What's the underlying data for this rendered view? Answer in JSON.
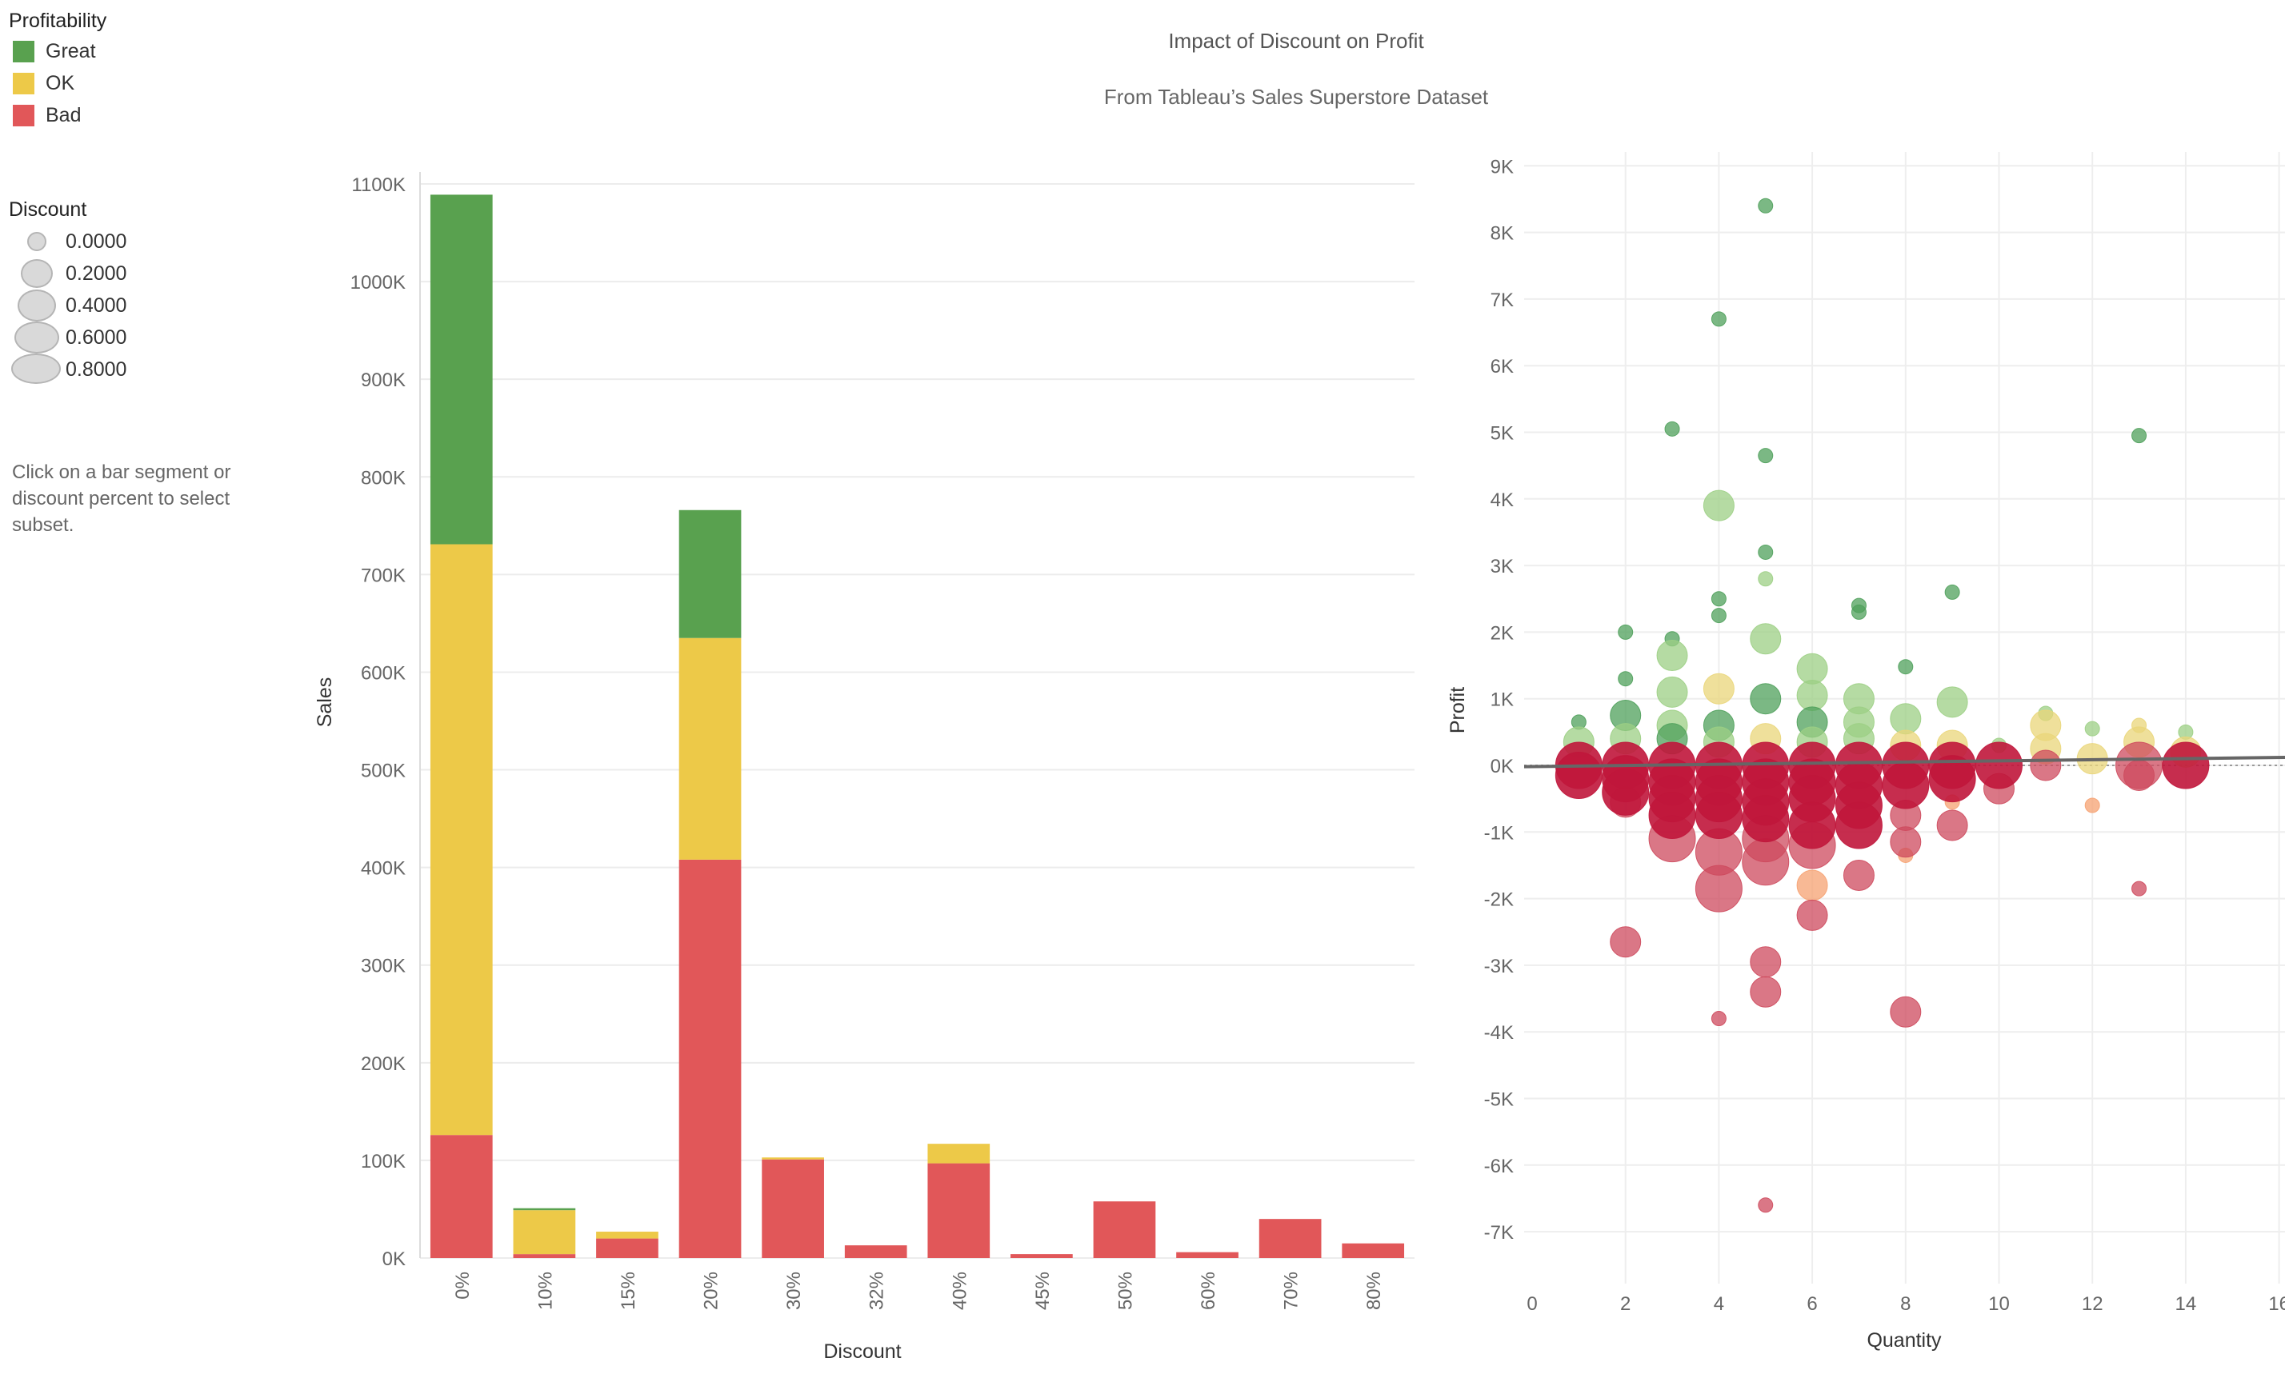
{
  "header": {
    "title": "Impact of Discount on Profit",
    "subtitle": "From Tableau’s Sales Superstore Dataset"
  },
  "legend": {
    "profitability": {
      "title": "Profitability",
      "items": [
        {
          "label": "Great",
          "color": "#59a14f"
        },
        {
          "label": "OK",
          "color": "#edc948"
        },
        {
          "label": "Bad",
          "color": "#e15759"
        }
      ]
    },
    "discount": {
      "title": "Discount",
      "items": [
        {
          "label": "0.0000",
          "discount": 0.0
        },
        {
          "label": "0.2000",
          "discount": 0.2
        },
        {
          "label": "0.4000",
          "discount": 0.4
        },
        {
          "label": "0.6000",
          "discount": 0.6
        },
        {
          "label": "0.8000",
          "discount": 0.8
        }
      ]
    }
  },
  "hint_lines": [
    "Click on a bar segment or",
    "discount percent to select",
    "subset."
  ],
  "chart_data": [
    {
      "type": "bar",
      "stacked": true,
      "xlabel": "Discount",
      "ylabel": "Sales",
      "categories": [
        "0%",
        "10%",
        "15%",
        "20%",
        "30%",
        "32%",
        "40%",
        "45%",
        "50%",
        "60%",
        "70%",
        "80%"
      ],
      "series": [
        {
          "name": "Bad",
          "color": "#e15759",
          "values": [
            126000,
            4000,
            20000,
            408000,
            101000,
            13000,
            97000,
            4000,
            58000,
            6000,
            40000,
            15000
          ]
        },
        {
          "name": "OK",
          "color": "#edc948",
          "values": [
            605000,
            45000,
            7000,
            227000,
            2000,
            0,
            20000,
            0,
            0,
            0,
            0,
            0
          ]
        },
        {
          "name": "Great",
          "color": "#59a14f",
          "values": [
            358000,
            2000,
            0,
            131000,
            0,
            0,
            0,
            0,
            0,
            0,
            0,
            0
          ]
        }
      ],
      "ylim": [
        0,
        1100000
      ],
      "yticks": [
        "0K",
        "100K",
        "200K",
        "300K",
        "400K",
        "500K",
        "600K",
        "700K",
        "800K",
        "900K",
        "1000K",
        "1100K"
      ],
      "grid": true
    },
    {
      "type": "scatter",
      "xlabel": "Quantity",
      "ylabel": "Profit",
      "xlim": [
        0,
        16
      ],
      "ylim": [
        -7500,
        9300
      ],
      "xticks": [
        "0",
        "2",
        "4",
        "6",
        "8",
        "10",
        "12",
        "14",
        "16"
      ],
      "yticks": [
        "-7K",
        "-6K",
        "-5K",
        "-4K",
        "-3K",
        "-2K",
        "-1K",
        "0K",
        "1K",
        "2K",
        "3K",
        "4K",
        "5K",
        "6K",
        "7K",
        "8K",
        "9K"
      ],
      "trend_line": {
        "x": [
          0,
          16
        ],
        "y": [
          -20,
          120
        ]
      },
      "colors": {
        "great_dark": "#4fa05b",
        "great_light": "#9ccf84",
        "ok": "#ead67a",
        "orange": "#f6a272",
        "bad": "#ce4a5d",
        "bad_dark": "#c0163b"
      },
      "points": [
        {
          "x": 5,
          "y": 8400,
          "discount": 0.0,
          "color": "great_dark"
        },
        {
          "x": 4,
          "y": 6700,
          "discount": 0.0,
          "color": "great_dark"
        },
        {
          "x": 3,
          "y": 5050,
          "discount": 0.0,
          "color": "great_dark"
        },
        {
          "x": 5,
          "y": 4650,
          "discount": 0.0,
          "color": "great_dark"
        },
        {
          "x": 13,
          "y": 4950,
          "discount": 0.0,
          "color": "great_dark"
        },
        {
          "x": 4,
          "y": 3900,
          "discount": 0.2,
          "color": "great_light"
        },
        {
          "x": 5,
          "y": 3200,
          "discount": 0.0,
          "color": "great_dark"
        },
        {
          "x": 5,
          "y": 2800,
          "discount": 0.0,
          "color": "great_light"
        },
        {
          "x": 4,
          "y": 2500,
          "discount": 0.0,
          "color": "great_dark"
        },
        {
          "x": 4,
          "y": 2250,
          "discount": 0.0,
          "color": "great_dark"
        },
        {
          "x": 7,
          "y": 2400,
          "discount": 0.0,
          "color": "great_dark"
        },
        {
          "x": 7,
          "y": 2300,
          "discount": 0.0,
          "color": "great_dark"
        },
        {
          "x": 9,
          "y": 2600,
          "discount": 0.0,
          "color": "great_dark"
        },
        {
          "x": 2,
          "y": 2000,
          "discount": 0.0,
          "color": "great_dark"
        },
        {
          "x": 3,
          "y": 1900,
          "discount": 0.0,
          "color": "great_dark"
        },
        {
          "x": 5,
          "y": 1900,
          "discount": 0.2,
          "color": "great_light"
        },
        {
          "x": 3,
          "y": 1650,
          "discount": 0.2,
          "color": "great_light"
        },
        {
          "x": 6,
          "y": 1450,
          "discount": 0.2,
          "color": "great_light"
        },
        {
          "x": 8,
          "y": 1480,
          "discount": 0.0,
          "color": "great_dark"
        },
        {
          "x": 4,
          "y": 1150,
          "discount": 0.2,
          "color": "ok"
        },
        {
          "x": 3,
          "y": 1100,
          "discount": 0.2,
          "color": "great_light"
        },
        {
          "x": 5,
          "y": 1000,
          "discount": 0.2,
          "color": "great_dark"
        },
        {
          "x": 6,
          "y": 1050,
          "discount": 0.2,
          "color": "great_light"
        },
        {
          "x": 7,
          "y": 1000,
          "discount": 0.2,
          "color": "great_light"
        },
        {
          "x": 9,
          "y": 950,
          "discount": 0.2,
          "color": "great_light"
        },
        {
          "x": 2,
          "y": 1300,
          "discount": 0.0,
          "color": "great_dark"
        },
        {
          "x": 2,
          "y": 750,
          "discount": 0.2,
          "color": "great_dark"
        },
        {
          "x": 1,
          "y": 650,
          "discount": 0.0,
          "color": "great_dark"
        },
        {
          "x": 11,
          "y": 780,
          "discount": 0.0,
          "color": "great_light"
        },
        {
          "x": 8,
          "y": 700,
          "discount": 0.2,
          "color": "great_light"
        },
        {
          "x": 3,
          "y": 600,
          "discount": 0.2,
          "color": "great_light"
        },
        {
          "x": 6,
          "y": 650,
          "discount": 0.2,
          "color": "great_dark"
        },
        {
          "x": 4,
          "y": 600,
          "discount": 0.2,
          "color": "great_dark"
        },
        {
          "x": 7,
          "y": 650,
          "discount": 0.2,
          "color": "great_light"
        },
        {
          "x": 11,
          "y": 600,
          "discount": 0.2,
          "color": "ok"
        },
        {
          "x": 12,
          "y": 550,
          "discount": 0.0,
          "color": "great_light"
        },
        {
          "x": 13,
          "y": 600,
          "discount": 0.0,
          "color": "ok"
        },
        {
          "x": 14,
          "y": 500,
          "discount": 0.0,
          "color": "great_light"
        },
        {
          "x": 1,
          "y": 350,
          "discount": 0.2,
          "color": "great_light"
        },
        {
          "x": 2,
          "y": 400,
          "discount": 0.2,
          "color": "great_light"
        },
        {
          "x": 3,
          "y": 400,
          "discount": 0.2,
          "color": "great_dark"
        },
        {
          "x": 4,
          "y": 350,
          "discount": 0.2,
          "color": "great_light"
        },
        {
          "x": 5,
          "y": 400,
          "discount": 0.2,
          "color": "ok"
        },
        {
          "x": 6,
          "y": 350,
          "discount": 0.2,
          "color": "great_light"
        },
        {
          "x": 7,
          "y": 400,
          "discount": 0.2,
          "color": "great_light"
        },
        {
          "x": 8,
          "y": 300,
          "discount": 0.2,
          "color": "ok"
        },
        {
          "x": 9,
          "y": 300,
          "discount": 0.2,
          "color": "ok"
        },
        {
          "x": 10,
          "y": 300,
          "discount": 0.0,
          "color": "great_light"
        },
        {
          "x": 11,
          "y": 250,
          "discount": 0.2,
          "color": "ok"
        },
        {
          "x": 13,
          "y": 350,
          "discount": 0.2,
          "color": "ok"
        },
        {
          "x": 14,
          "y": 200,
          "discount": 0.2,
          "color": "ok"
        },
        {
          "x": 12,
          "y": 100,
          "discount": 0.2,
          "color": "ok"
        },
        {
          "x": 1,
          "y": 0,
          "discount": 0.4,
          "color": "bad_dark"
        },
        {
          "x": 1,
          "y": -150,
          "discount": 0.4,
          "color": "bad_dark"
        },
        {
          "x": 2,
          "y": 0,
          "discount": 0.4,
          "color": "bad_dark"
        },
        {
          "x": 2,
          "y": -200,
          "discount": 0.4,
          "color": "bad_dark"
        },
        {
          "x": 2,
          "y": -400,
          "discount": 0.4,
          "color": "bad_dark"
        },
        {
          "x": 2,
          "y": -550,
          "discount": 0.2,
          "color": "bad"
        },
        {
          "x": 3,
          "y": 0,
          "discount": 0.4,
          "color": "bad_dark"
        },
        {
          "x": 3,
          "y": -250,
          "discount": 0.4,
          "color": "bad_dark"
        },
        {
          "x": 3,
          "y": -500,
          "discount": 0.4,
          "color": "bad_dark"
        },
        {
          "x": 3,
          "y": -750,
          "discount": 0.4,
          "color": "bad_dark"
        },
        {
          "x": 3,
          "y": -1100,
          "discount": 0.4,
          "color": "bad"
        },
        {
          "x": 4,
          "y": 0,
          "discount": 0.4,
          "color": "bad_dark"
        },
        {
          "x": 4,
          "y": -250,
          "discount": 0.4,
          "color": "bad_dark"
        },
        {
          "x": 4,
          "y": -500,
          "discount": 0.4,
          "color": "bad_dark"
        },
        {
          "x": 4,
          "y": -750,
          "discount": 0.4,
          "color": "bad_dark"
        },
        {
          "x": 4,
          "y": -1300,
          "discount": 0.4,
          "color": "bad"
        },
        {
          "x": 4,
          "y": -1850,
          "discount": 0.4,
          "color": "bad"
        },
        {
          "x": 5,
          "y": 0,
          "discount": 0.4,
          "color": "bad_dark"
        },
        {
          "x": 5,
          "y": -250,
          "discount": 0.4,
          "color": "bad_dark"
        },
        {
          "x": 5,
          "y": -550,
          "discount": 0.4,
          "color": "bad_dark"
        },
        {
          "x": 5,
          "y": -800,
          "discount": 0.4,
          "color": "bad_dark"
        },
        {
          "x": 5,
          "y": -1100,
          "discount": 0.4,
          "color": "bad"
        },
        {
          "x": 5,
          "y": -1450,
          "discount": 0.4,
          "color": "bad"
        },
        {
          "x": 6,
          "y": 0,
          "discount": 0.4,
          "color": "bad_dark"
        },
        {
          "x": 6,
          "y": -250,
          "discount": 0.4,
          "color": "bad_dark"
        },
        {
          "x": 6,
          "y": -500,
          "discount": 0.4,
          "color": "bad_dark"
        },
        {
          "x": 6,
          "y": -900,
          "discount": 0.4,
          "color": "bad_dark"
        },
        {
          "x": 6,
          "y": -1200,
          "discount": 0.4,
          "color": "bad"
        },
        {
          "x": 6,
          "y": -1800,
          "discount": 0.2,
          "color": "orange"
        },
        {
          "x": 7,
          "y": 0,
          "discount": 0.4,
          "color": "bad_dark"
        },
        {
          "x": 7,
          "y": -300,
          "discount": 0.4,
          "color": "bad_dark"
        },
        {
          "x": 7,
          "y": -600,
          "discount": 0.4,
          "color": "bad_dark"
        },
        {
          "x": 7,
          "y": -900,
          "discount": 0.4,
          "color": "bad_dark"
        },
        {
          "x": 7,
          "y": -1650,
          "discount": 0.2,
          "color": "bad"
        },
        {
          "x": 8,
          "y": 0,
          "discount": 0.4,
          "color": "bad_dark"
        },
        {
          "x": 8,
          "y": -300,
          "discount": 0.4,
          "color": "bad_dark"
        },
        {
          "x": 8,
          "y": -750,
          "discount": 0.2,
          "color": "bad"
        },
        {
          "x": 8,
          "y": -1350,
          "discount": 0.0,
          "color": "orange"
        },
        {
          "x": 8,
          "y": -1150,
          "discount": 0.2,
          "color": "bad"
        },
        {
          "x": 9,
          "y": 0,
          "discount": 0.4,
          "color": "bad_dark"
        },
        {
          "x": 9,
          "y": -200,
          "discount": 0.4,
          "color": "bad_dark"
        },
        {
          "x": 9,
          "y": -550,
          "discount": 0.0,
          "color": "orange"
        },
        {
          "x": 9,
          "y": -900,
          "discount": 0.2,
          "color": "bad"
        },
        {
          "x": 10,
          "y": 0,
          "discount": 0.4,
          "color": "bad_dark"
        },
        {
          "x": 10,
          "y": -350,
          "discount": 0.2,
          "color": "bad"
        },
        {
          "x": 11,
          "y": 0,
          "discount": 0.2,
          "color": "bad"
        },
        {
          "x": 12,
          "y": -600,
          "discount": 0.0,
          "color": "orange"
        },
        {
          "x": 13,
          "y": 0,
          "discount": 0.4,
          "color": "bad"
        },
        {
          "x": 13,
          "y": -150,
          "discount": 0.2,
          "color": "bad"
        },
        {
          "x": 13,
          "y": -1850,
          "discount": 0.0,
          "color": "bad"
        },
        {
          "x": 14,
          "y": 0,
          "discount": 0.4,
          "color": "bad_dark"
        },
        {
          "x": 2,
          "y": -2650,
          "discount": 0.2,
          "color": "bad"
        },
        {
          "x": 4,
          "y": -3800,
          "discount": 0.0,
          "color": "bad"
        },
        {
          "x": 5,
          "y": -2950,
          "discount": 0.2,
          "color": "bad"
        },
        {
          "x": 5,
          "y": -3400,
          "discount": 0.2,
          "color": "bad"
        },
        {
          "x": 5,
          "y": -6600,
          "discount": 0.0,
          "color": "bad"
        },
        {
          "x": 6,
          "y": -2250,
          "discount": 0.2,
          "color": "bad"
        },
        {
          "x": 8,
          "y": -3700,
          "discount": 0.2,
          "color": "bad"
        }
      ]
    }
  ]
}
